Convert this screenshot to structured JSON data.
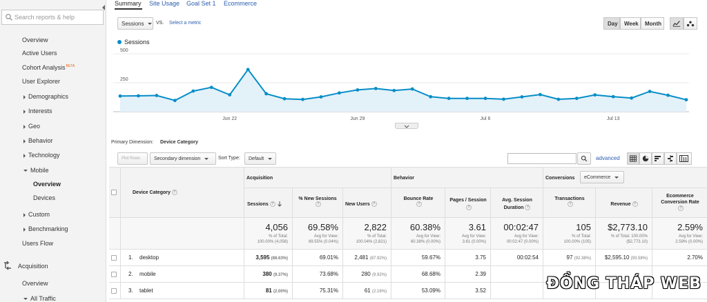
{
  "search": {
    "placeholder": "Search reports & help"
  },
  "sidebar": {
    "items": [
      {
        "label": "Overview"
      },
      {
        "label": "Active Users"
      },
      {
        "label": "Cohort Analysis",
        "badge": "BETA"
      },
      {
        "label": "User Explorer"
      },
      {
        "label": "Demographics"
      },
      {
        "label": "Interests"
      },
      {
        "label": "Geo"
      },
      {
        "label": "Behavior"
      },
      {
        "label": "Technology"
      },
      {
        "label": "Mobile"
      },
      {
        "label": "Overview"
      },
      {
        "label": "Devices"
      },
      {
        "label": "Custom"
      },
      {
        "label": "Benchmarking"
      },
      {
        "label": "Users Flow"
      },
      {
        "label": "Acquisition"
      },
      {
        "label": "Overview"
      },
      {
        "label": "All Traffic"
      }
    ]
  },
  "tabs": [
    "Summary",
    "Site Usage",
    "Goal Set 1",
    "Ecommerce"
  ],
  "controls": {
    "metric": "Sessions",
    "vs": "VS.",
    "select_metric": "Select a metric",
    "day": "Day",
    "week": "Week",
    "month": "Month"
  },
  "chart_data": {
    "type": "area",
    "series": [
      {
        "name": "Sessions",
        "values": [
          135,
          137,
          140,
          97,
          178,
          210,
          146,
          364,
          155,
          112,
          106,
          128,
          162,
          188,
          200,
          183,
          196,
          129,
          115,
          115,
          115,
          108,
          128,
          148,
          107,
          115,
          145,
          130,
          118,
          175,
          142,
          103
        ]
      }
    ],
    "x_tick_labels": [
      "Jun 22",
      "Jun 29",
      "Jul 6",
      "Jul 13"
    ],
    "y_ticks": [
      250,
      500
    ],
    "ylim": [
      0,
      500
    ],
    "color": "#058dc7",
    "fill": "#e3f1f9"
  },
  "dimension": {
    "label": "Primary Dimension:",
    "value": "Device Category"
  },
  "table_controls": {
    "plot_rows": "Plot Rows",
    "secondary": "Secondary dimension",
    "sort_label": "Sort Type:",
    "sort_value": "Default",
    "advanced": "advanced"
  },
  "table": {
    "dim_header": "Device Category",
    "groups": {
      "acquisition": "Acquisition",
      "behavior": "Behavior",
      "conversions": "Conversions",
      "conv_select": "eCommerce"
    },
    "columns": [
      "Sessions",
      "% New Sessions",
      "New Users",
      "Bounce Rate",
      "Pages / Session",
      "Avg. Session Duration",
      "Transactions",
      "Revenue",
      "Ecommerce Conversion Rate"
    ],
    "totals": [
      {
        "value": "4,056",
        "sub1": "% of Total:",
        "sub2": "100.00% (4,056)"
      },
      {
        "value": "69.58%",
        "sub1": "Avg for View:",
        "sub2": "69.55% (0.04%)"
      },
      {
        "value": "2,822",
        "sub1": "% of Total:",
        "sub2": "100.04% (2,821)"
      },
      {
        "value": "60.38%",
        "sub1": "Avg for View:",
        "sub2": "60.38% (0.00%)"
      },
      {
        "value": "3.61",
        "sub1": "Avg for View:",
        "sub2": "3.61 (0.00%)"
      },
      {
        "value": "00:02:47",
        "sub1": "Avg for View:",
        "sub2": "00:02:47 (0.00%)"
      },
      {
        "value": "105",
        "sub1": "% of Total:",
        "sub2": "100.00% (105)"
      },
      {
        "value": "$2,773.10",
        "sub1": "% of Total: 100.00%",
        "sub2": "($2,773.10)"
      },
      {
        "value": "2.59%",
        "sub1": "Avg for View:",
        "sub2": "2.59% (0.00%)"
      }
    ],
    "rows": [
      {
        "n": "1.",
        "device": "desktop",
        "sessions": "3,595",
        "sessions_pct": "(88.63%)",
        "new_sess": "69.01%",
        "new_users": "2,481",
        "new_users_pct": "(87.92%)",
        "bounce": "59.67%",
        "pages": "3.75",
        "duration": "00:02:54",
        "trans": "97",
        "trans_pct": "(92.38%)",
        "revenue": "$2,595.10",
        "revenue_pct": "(93.58%)",
        "conv": "2.70%"
      },
      {
        "n": "2.",
        "device": "mobile",
        "sessions": "380",
        "sessions_pct": "(9.37%)",
        "new_sess": "73.68%",
        "new_users": "280",
        "new_users_pct": "(9.92%)",
        "bounce": "68.68%",
        "pages": "2.39",
        "duration": "",
        "trans": "",
        "trans_pct": "",
        "revenue": "",
        "revenue_pct": "",
        "conv": ""
      },
      {
        "n": "3.",
        "device": "tablet",
        "sessions": "81",
        "sessions_pct": "(2.00%)",
        "new_sess": "75.31%",
        "new_users": "61",
        "new_users_pct": "(2.16%)",
        "bounce": "53.09%",
        "pages": "3.52",
        "duration": "",
        "trans": "",
        "trans_pct": "",
        "revenue": "",
        "revenue_pct": "",
        "conv": ""
      }
    ]
  },
  "watermark": "ĐỒNG THÁP WEB"
}
